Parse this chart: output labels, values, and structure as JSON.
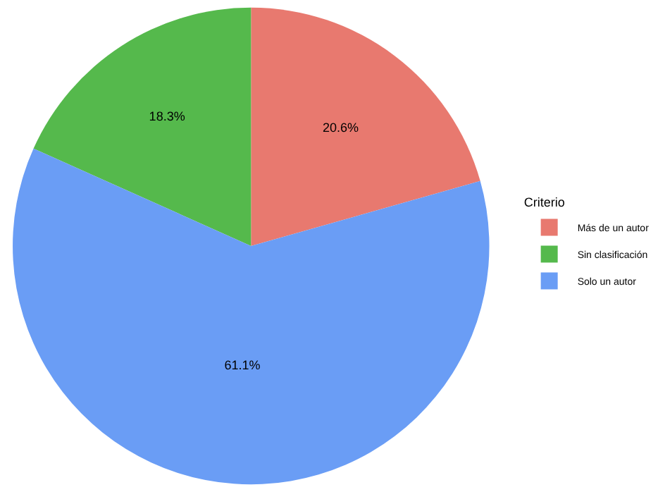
{
  "chart_data": {
    "type": "pie",
    "legend_title": "Criterio",
    "categories": [
      "Más de un autor",
      "Sin clasificación",
      "Solo un autor"
    ],
    "values": [
      20.6,
      18.3,
      61.1
    ],
    "colors": [
      "#e8796f",
      "#55b94c",
      "#6a9df5"
    ],
    "value_labels": [
      "20.6%",
      "18.3%",
      "61.1%"
    ],
    "legend": "right"
  }
}
